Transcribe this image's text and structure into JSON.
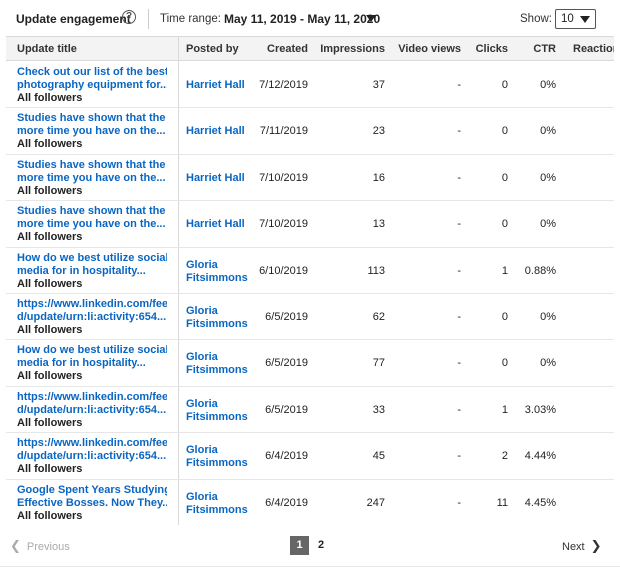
{
  "header": {
    "title": "Update engagement",
    "help_icon": "?",
    "time_range_label": "Time range:",
    "time_range_value": "May 11, 2019 - May 11, 2020",
    "show_label": "Show:",
    "show_value": "10"
  },
  "columns": {
    "title": "Update title",
    "posted_by": "Posted by",
    "created": "Created",
    "impressions": "Impressions",
    "video_views": "Video views",
    "clicks": "Clicks",
    "ctr": "CTR",
    "reactions": "Reaction"
  },
  "rows": [
    {
      "title1": "Check out our list of the best",
      "title2": "photography equipment for...",
      "audience": "All followers",
      "poster1": "Harriet Hall",
      "poster2": "",
      "created": "7/12/2019",
      "impressions": "37",
      "video_views": "-",
      "clicks": "0",
      "ctr": "0%"
    },
    {
      "title1": "Studies have shown that the",
      "title2": "more time you have on the...",
      "audience": "All followers",
      "poster1": "Harriet Hall",
      "poster2": "",
      "created": "7/11/2019",
      "impressions": "23",
      "video_views": "-",
      "clicks": "0",
      "ctr": "0%"
    },
    {
      "title1": "Studies have shown that the",
      "title2": "more time you have on the...",
      "audience": "All followers",
      "poster1": "Harriet Hall",
      "poster2": "",
      "created": "7/10/2019",
      "impressions": "16",
      "video_views": "-",
      "clicks": "0",
      "ctr": "0%"
    },
    {
      "title1": "Studies have shown that the",
      "title2": "more time you have on the...",
      "audience": "All followers",
      "poster1": "Harriet Hall",
      "poster2": "",
      "created": "7/10/2019",
      "impressions": "13",
      "video_views": "-",
      "clicks": "0",
      "ctr": "0%"
    },
    {
      "title1": "How do we best utilize social",
      "title2": "media for in hospitality...",
      "audience": "All followers",
      "poster1": "Gloria",
      "poster2": "Fitsimmons",
      "created": "6/10/2019",
      "impressions": "113",
      "video_views": "-",
      "clicks": "1",
      "ctr": "0.88%"
    },
    {
      "title1": "https://www.linkedin.com/fee",
      "title2": "d/update/urn:li:activity:654...",
      "audience": "All followers",
      "poster1": "Gloria",
      "poster2": "Fitsimmons",
      "created": "6/5/2019",
      "impressions": "62",
      "video_views": "-",
      "clicks": "0",
      "ctr": "0%"
    },
    {
      "title1": "How do we best utilize social",
      "title2": "media for in hospitality...",
      "audience": "All followers",
      "poster1": "Gloria",
      "poster2": "Fitsimmons",
      "created": "6/5/2019",
      "impressions": "77",
      "video_views": "-",
      "clicks": "0",
      "ctr": "0%"
    },
    {
      "title1": "https://www.linkedin.com/fee",
      "title2": "d/update/urn:li:activity:654...",
      "audience": "All followers",
      "poster1": "Gloria",
      "poster2": "Fitsimmons",
      "created": "6/5/2019",
      "impressions": "33",
      "video_views": "-",
      "clicks": "1",
      "ctr": "3.03%"
    },
    {
      "title1": "https://www.linkedin.com/fee",
      "title2": "d/update/urn:li:activity:654...",
      "audience": "All followers",
      "poster1": "Gloria",
      "poster2": "Fitsimmons",
      "created": "6/4/2019",
      "impressions": "45",
      "video_views": "-",
      "clicks": "2",
      "ctr": "4.44%"
    },
    {
      "title1": "Google Spent Years Studying",
      "title2": "Effective Bosses. Now They...",
      "audience": "All followers",
      "poster1": "Gloria",
      "poster2": "Fitsimmons",
      "created": "6/4/2019",
      "impressions": "247",
      "video_views": "-",
      "clicks": "11",
      "ctr": "4.45%"
    }
  ],
  "pagination": {
    "prev_icon": "❮",
    "prev_label": "Previous",
    "page1": "1",
    "page2": "2",
    "next_label": "Next",
    "next_icon": "❯"
  },
  "colors": {
    "link": "#0a66c2",
    "header_bg": "#f3f3f3",
    "active_page_bg": "#666666"
  }
}
